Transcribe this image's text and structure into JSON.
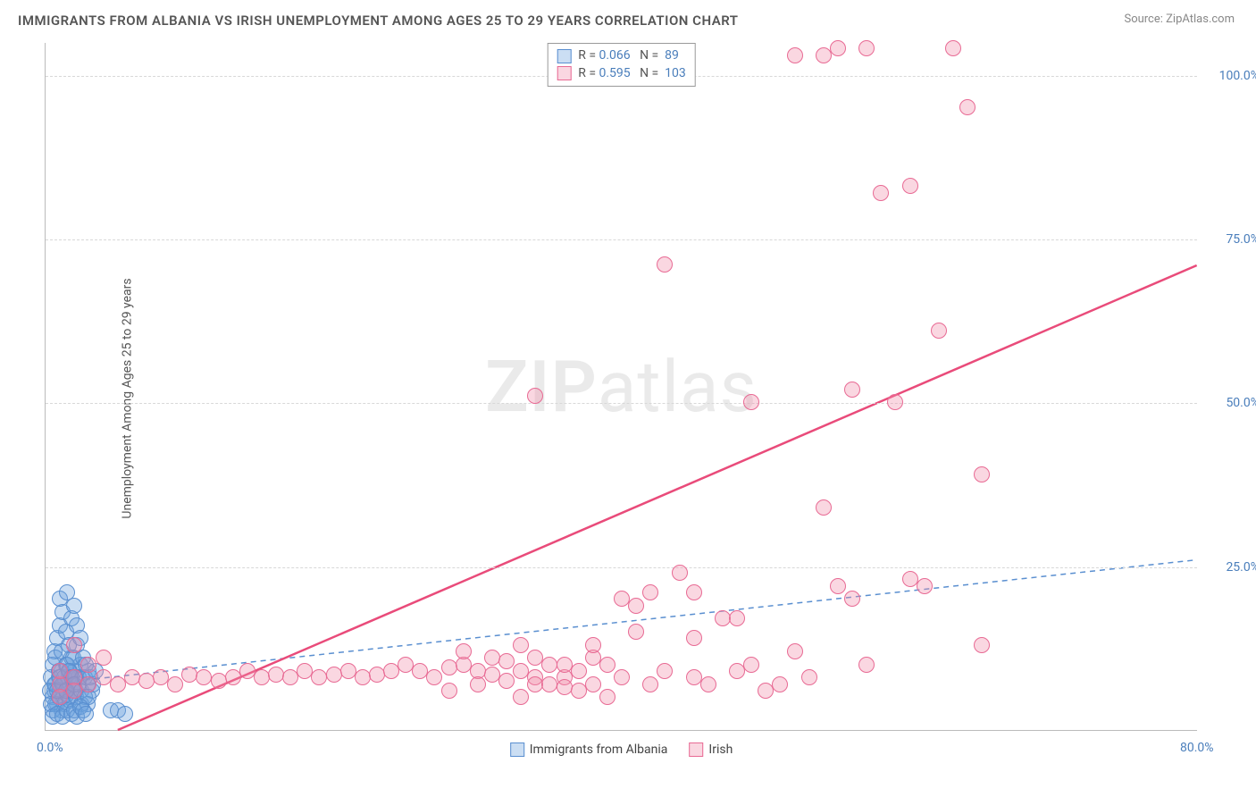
{
  "title": "IMMIGRANTS FROM ALBANIA VS IRISH UNEMPLOYMENT AMONG AGES 25 TO 29 YEARS CORRELATION CHART",
  "source": "Source: ZipAtlas.com",
  "y_axis_label": "Unemployment Among Ages 25 to 29 years",
  "watermark_bold": "ZIP",
  "watermark_light": "atlas",
  "chart": {
    "type": "scatter",
    "xlim": [
      0,
      80
    ],
    "ylim": [
      0,
      105
    ],
    "x_ticks": [
      {
        "v": 0,
        "label": "0.0%"
      },
      {
        "v": 80,
        "label": "80.0%"
      }
    ],
    "y_ticks": [
      {
        "v": 25,
        "label": "25.0%"
      },
      {
        "v": 50,
        "label": "50.0%"
      },
      {
        "v": 75,
        "label": "75.0%"
      },
      {
        "v": 100,
        "label": "100.0%"
      }
    ],
    "marker_radius": 9,
    "series": [
      {
        "name": "Immigrants from Albania",
        "color_fill": "rgba(106,160,220,0.35)",
        "color_stroke": "#5a8fd0",
        "R": "0.066",
        "N": "89",
        "trend": {
          "x1": 0,
          "y1": 7,
          "x2": 80,
          "y2": 26,
          "stroke": "#5a8fd0",
          "width": 1.5,
          "dash": "6,5"
        },
        "points": [
          [
            0.5,
            5
          ],
          [
            0.6,
            6
          ],
          [
            0.7,
            7
          ],
          [
            0.8,
            4
          ],
          [
            0.9,
            8
          ],
          [
            1.0,
            6
          ],
          [
            1.1,
            9
          ],
          [
            1.2,
            5
          ],
          [
            1.3,
            7
          ],
          [
            1.4,
            10
          ],
          [
            1.5,
            6
          ],
          [
            1.6,
            8
          ],
          [
            1.7,
            5
          ],
          [
            1.8,
            11
          ],
          [
            1.9,
            7
          ],
          [
            2.0,
            9
          ],
          [
            2.1,
            6
          ],
          [
            2.2,
            13
          ],
          [
            2.3,
            8
          ],
          [
            2.4,
            10
          ],
          [
            0.5,
            3
          ],
          [
            0.7,
            4
          ],
          [
            0.9,
            5
          ],
          [
            1.1,
            3
          ],
          [
            1.3,
            4
          ],
          [
            1.5,
            5.5
          ],
          [
            1.7,
            4.5
          ],
          [
            1.9,
            6
          ],
          [
            2.1,
            5
          ],
          [
            2.3,
            7
          ],
          [
            0.6,
            12
          ],
          [
            0.8,
            14
          ],
          [
            1.0,
            16
          ],
          [
            1.2,
            18
          ],
          [
            1.4,
            15
          ],
          [
            1.6,
            13
          ],
          [
            1.8,
            17
          ],
          [
            2.0,
            19
          ],
          [
            2.2,
            16
          ],
          [
            2.4,
            14
          ],
          [
            0.4,
            8
          ],
          [
            0.5,
            10
          ],
          [
            0.7,
            11
          ],
          [
            0.9,
            9
          ],
          [
            1.1,
            12
          ],
          [
            1.3,
            8
          ],
          [
            1.5,
            10
          ],
          [
            1.7,
            9
          ],
          [
            1.9,
            11
          ],
          [
            2.1,
            8
          ],
          [
            0.3,
            6
          ],
          [
            0.4,
            4
          ],
          [
            0.6,
            7
          ],
          [
            0.8,
            6
          ],
          [
            1.0,
            8
          ],
          [
            1.2,
            7
          ],
          [
            1.4,
            6
          ],
          [
            1.6,
            9
          ],
          [
            1.8,
            8
          ],
          [
            2.0,
            7
          ],
          [
            2.5,
            6
          ],
          [
            2.7,
            8
          ],
          [
            2.9,
            7
          ],
          [
            3.0,
            9
          ],
          [
            3.2,
            6
          ],
          [
            2.6,
            11
          ],
          [
            2.8,
            10
          ],
          [
            3.1,
            8
          ],
          [
            3.3,
            7
          ],
          [
            3.5,
            9
          ],
          [
            4.5,
            3
          ],
          [
            5.0,
            3
          ],
          [
            5.5,
            2.5
          ],
          [
            1.0,
            20
          ],
          [
            1.5,
            21
          ],
          [
            2.5,
            4
          ],
          [
            2.7,
            5
          ],
          [
            2.9,
            4
          ],
          [
            3.0,
            5
          ],
          [
            0.5,
            2
          ],
          [
            0.8,
            2.5
          ],
          [
            1.2,
            2
          ],
          [
            1.5,
            3
          ],
          [
            1.8,
            2.5
          ],
          [
            2.0,
            3
          ],
          [
            2.2,
            2
          ],
          [
            2.4,
            3.5
          ],
          [
            2.6,
            3
          ],
          [
            2.8,
            2.5
          ]
        ]
      },
      {
        "name": "Irish",
        "color_fill": "rgba(240,140,170,0.35)",
        "color_stroke": "#e86a94",
        "R": "0.595",
        "N": "103",
        "trend": {
          "x1": 5,
          "y1": 0,
          "x2": 80,
          "y2": 71,
          "stroke": "#e94b7a",
          "width": 2.5,
          "dash": null
        },
        "points": [
          [
            1,
            7
          ],
          [
            2,
            8
          ],
          [
            3,
            7
          ],
          [
            4,
            8
          ],
          [
            5,
            7
          ],
          [
            6,
            8
          ],
          [
            7,
            7.5
          ],
          [
            8,
            8
          ],
          [
            9,
            7
          ],
          [
            10,
            8.5
          ],
          [
            11,
            8
          ],
          [
            12,
            7.5
          ],
          [
            13,
            8
          ],
          [
            14,
            9
          ],
          [
            15,
            8
          ],
          [
            16,
            8.5
          ],
          [
            17,
            8
          ],
          [
            18,
            9
          ],
          [
            19,
            8
          ],
          [
            20,
            8.5
          ],
          [
            21,
            9
          ],
          [
            22,
            8
          ],
          [
            23,
            8.5
          ],
          [
            24,
            9
          ],
          [
            25,
            10
          ],
          [
            26,
            9
          ],
          [
            27,
            8
          ],
          [
            28,
            9.5
          ],
          [
            29,
            10
          ],
          [
            30,
            9
          ],
          [
            31,
            8.5
          ],
          [
            32,
            10.5
          ],
          [
            33,
            9
          ],
          [
            34,
            8
          ],
          [
            35,
            10
          ],
          [
            36,
            8
          ],
          [
            37,
            9
          ],
          [
            38,
            11
          ],
          [
            39,
            10
          ],
          [
            40,
            8
          ],
          [
            28,
            6
          ],
          [
            30,
            7
          ],
          [
            32,
            7.5
          ],
          [
            34,
            7
          ],
          [
            36,
            6.5
          ],
          [
            29,
            12
          ],
          [
            31,
            11
          ],
          [
            33,
            13
          ],
          [
            35,
            7
          ],
          [
            36,
            10
          ],
          [
            37,
            6
          ],
          [
            38,
            7
          ],
          [
            33,
            5
          ],
          [
            34,
            11
          ],
          [
            38,
            13
          ],
          [
            39,
            5
          ],
          [
            40,
            20
          ],
          [
            41,
            19
          ],
          [
            41,
            15
          ],
          [
            42,
            21
          ],
          [
            42,
            7
          ],
          [
            43,
            9
          ],
          [
            44,
            24
          ],
          [
            45,
            14
          ],
          [
            45,
            21
          ],
          [
            45,
            8
          ],
          [
            46,
            7
          ],
          [
            47,
            17
          ],
          [
            48,
            9
          ],
          [
            48,
            17
          ],
          [
            49,
            50
          ],
          [
            49,
            10
          ],
          [
            50,
            6
          ],
          [
            51,
            7
          ],
          [
            52,
            12
          ],
          [
            53,
            8
          ],
          [
            54,
            34
          ],
          [
            55,
            22
          ],
          [
            56,
            20
          ],
          [
            56,
            52
          ],
          [
            57,
            10
          ],
          [
            58,
            82
          ],
          [
            59,
            50
          ],
          [
            60,
            83
          ],
          [
            60,
            23
          ],
          [
            61,
            22
          ],
          [
            62,
            61
          ],
          [
            63,
            104
          ],
          [
            64,
            95
          ],
          [
            65,
            13
          ],
          [
            65,
            39
          ],
          [
            52,
            103
          ],
          [
            54,
            103
          ],
          [
            55,
            104
          ],
          [
            57,
            104
          ],
          [
            43,
            71
          ],
          [
            34,
            51
          ],
          [
            1,
            9
          ],
          [
            2,
            6
          ],
          [
            2,
            13
          ],
          [
            3,
            10
          ],
          [
            4,
            11
          ],
          [
            1,
            5
          ]
        ]
      }
    ]
  },
  "legend_bottom": [
    {
      "label": "Immigrants from Albania",
      "fill": "rgba(106,160,220,0.35)",
      "stroke": "#5a8fd0"
    },
    {
      "label": "Irish",
      "fill": "rgba(240,140,170,0.35)",
      "stroke": "#e86a94"
    }
  ]
}
